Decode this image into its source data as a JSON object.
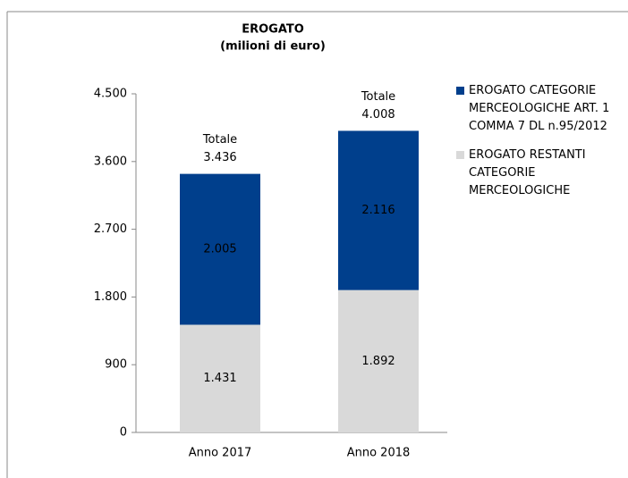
{
  "chart_data": {
    "type": "stacked_bar",
    "title": "EROGATO",
    "subtitle": "(milioni di euro)",
    "categories": [
      "Anno 2017",
      "Anno 2018"
    ],
    "series": [
      {
        "name": "EROGATO RESTANTI CATEGORIE MERCEOLOGICHE",
        "color": "#d9d9d9",
        "values": [
          1431,
          1892
        ],
        "value_labels": [
          "1.431",
          "1.892"
        ]
      },
      {
        "name": "EROGATO CATEGORIE MERCEOLOGICHE ART. 1 COMMA 7 DL n.95/2012",
        "color": "#003f8c",
        "values": [
          2005,
          2116
        ],
        "value_labels": [
          "2.005",
          "2.116"
        ]
      }
    ],
    "totals": {
      "label": "Totale",
      "values": [
        3436,
        4008
      ],
      "value_labels": [
        "3.436",
        "4.008"
      ]
    },
    "ylim": [
      0,
      4500
    ],
    "yticks": [
      0,
      {
        "value": 900,
        "label": "900"
      },
      {
        "value": 1800,
        "label": "1.800"
      },
      {
        "value": 2700,
        "label": "2.700"
      },
      {
        "value": 3600,
        "label": "3.600"
      },
      {
        "value": 4500,
        "label": "4.500"
      }
    ],
    "legend": "right"
  }
}
